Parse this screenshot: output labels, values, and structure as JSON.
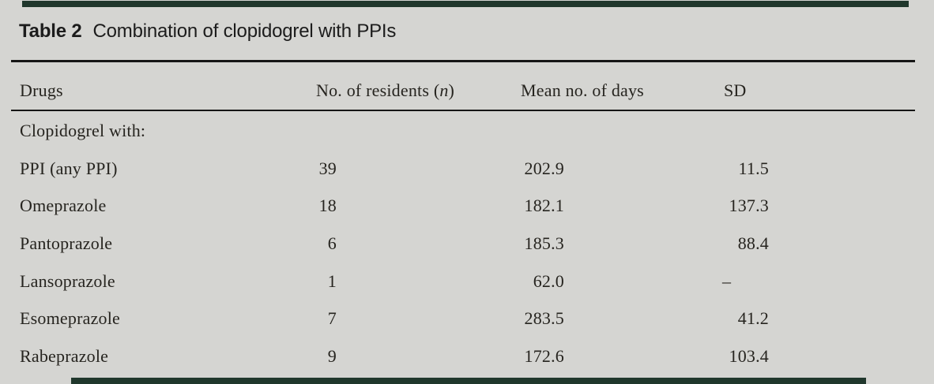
{
  "caption": {
    "label": "Table 2",
    "title": "Combination of clopidogrel with PPIs"
  },
  "columns": {
    "drug": "Drugs",
    "residents_prefix": "No. of residents (",
    "residents_n": "n",
    "residents_suffix": ")",
    "mean": "Mean no. of days",
    "sd": "SD"
  },
  "section_row": "Clopidogrel with:",
  "rows": [
    {
      "drug": "PPI (any PPI)",
      "n": "39",
      "mean": "202.9",
      "sd": "11.5"
    },
    {
      "drug": "Omeprazole",
      "n": "18",
      "mean": "182.1",
      "sd": "137.3"
    },
    {
      "drug": "Pantoprazole",
      "n": "6",
      "mean": "185.3",
      "sd": "88.4"
    },
    {
      "drug": "Lansoprazole",
      "n": "1",
      "mean": "62.0",
      "sd": "–"
    },
    {
      "drug": "Esomeprazole",
      "n": "7",
      "mean": "283.5",
      "sd": "41.2"
    },
    {
      "drug": "Rabeprazole",
      "n": "9",
      "mean": "172.6",
      "sd": "103.4"
    }
  ],
  "colors": {
    "background": "#d5d5d2",
    "edge_bar_green": "#20372c",
    "rule_black": "#161616",
    "text": "#26241f"
  }
}
